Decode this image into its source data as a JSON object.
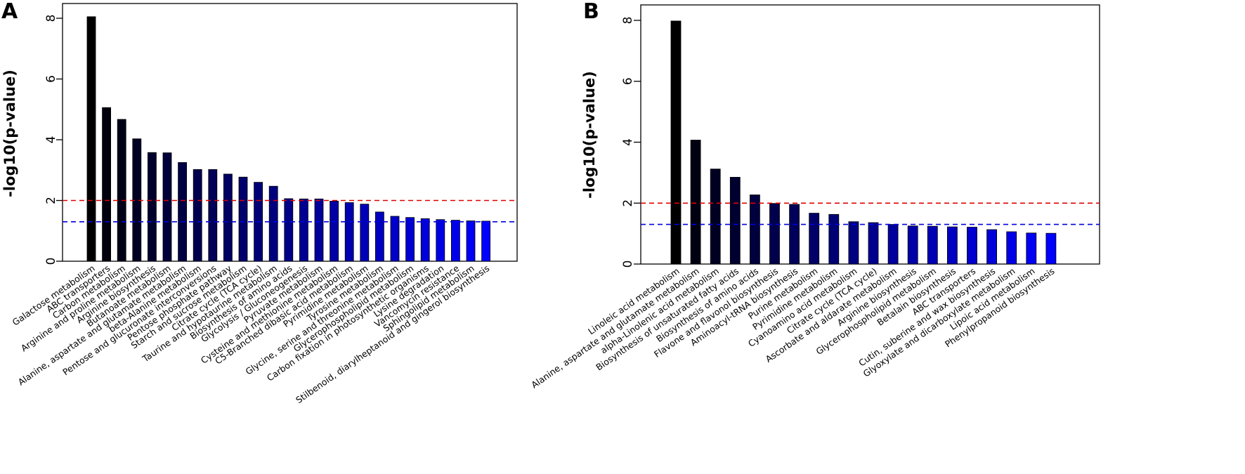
{
  "chart_data": [
    {
      "panel": "A",
      "type": "bar",
      "ylabel": "-log10(p-value)",
      "ylim": [
        0,
        8.5
      ],
      "yticks": [
        0,
        2,
        4,
        6,
        8
      ],
      "thresholds": [
        {
          "value": 2.0,
          "color": "#e00000",
          "style": "dashed"
        },
        {
          "value": 1.3,
          "color": "#0000e0",
          "style": "dashed"
        }
      ],
      "categories": [
        "Galactose metabolism",
        "ABC transporters",
        "Carbon metabolism",
        "Arginine and proline metabolism",
        "Arginine biosynthesis",
        "Butanoate metabolism",
        "Alanine, aspartate and glutamate metabolism",
        "beta-Alanine metabolism",
        "Pentose and glucuronate interconversions",
        "Pentose phosphate pathway",
        "Starch and sucrose metabolism",
        "Citrate cycle (TCA cycle)",
        "Taurine and hypotaurine metabolism",
        "Biosynthesis of amino acids",
        "Glycolysis / Gluconeogenesis",
        "Pyruvate metabolism",
        "Cysteine and methionine metabolism",
        "C5-Branched dibasic acid metabolism",
        "Pyrimidine metabolism",
        "Tyrosine metabolism",
        "Glycine, serine and threonine metabolism",
        "Glycerophospholipid metabolism",
        "Carbon fixation in photosynthetic organisms",
        "Lysine degradation",
        "Vancomycin resistance",
        "Sphingolipid metabolism",
        "Stilbenoid, diarylheptanoid and gingerol biosynthesis"
      ],
      "values": [
        8.05,
        5.06,
        4.67,
        4.03,
        3.58,
        3.57,
        3.25,
        3.02,
        3.02,
        2.87,
        2.77,
        2.6,
        2.47,
        2.06,
        2.05,
        2.05,
        1.98,
        1.93,
        1.88,
        1.62,
        1.48,
        1.44,
        1.4,
        1.37,
        1.35,
        1.33,
        1.32
      ]
    },
    {
      "panel": "B",
      "type": "bar",
      "ylabel": "-log10(p-value)",
      "ylim": [
        0,
        8.5
      ],
      "yticks": [
        0,
        2,
        4,
        6,
        8
      ],
      "thresholds": [
        {
          "value": 2.0,
          "color": "#e00000",
          "style": "dashed"
        },
        {
          "value": 1.3,
          "color": "#0000e0",
          "style": "dashed"
        }
      ],
      "categories": [
        "Linoleic acid metabolism",
        "Alanine, aspartate and glutamate metabolism",
        "alpha-Linolenic acid metabolism",
        "Biosynthesis of unsaturated fatty acids",
        "Biosynthesis of amino acids",
        "Flavone and flavonol biosynthesis",
        "Aminoacyl-tRNA biosynthesis",
        "Purine metabolism",
        "Pyrimidine metabolism",
        "Cyanoamino acid metabolism",
        "Citrate cycle (TCA cycle)",
        "Ascorbate and aldarate metabolism",
        "Arginine biosynthesis",
        "Glycerophospholipid metabolism",
        "Betalain biosynthesis",
        "ABC transporters",
        "Cutin, suberine and wax biosynthesis",
        "Glyoxylate and dicarboxylate metabolism",
        "Lipoic acid metabolism",
        "Phenylpropanoid biosynthesis"
      ],
      "values": [
        7.98,
        4.07,
        3.12,
        2.85,
        2.27,
        1.99,
        1.96,
        1.67,
        1.63,
        1.39,
        1.36,
        1.3,
        1.25,
        1.24,
        1.22,
        1.21,
        1.13,
        1.06,
        1.02,
        1.01
      ]
    }
  ]
}
